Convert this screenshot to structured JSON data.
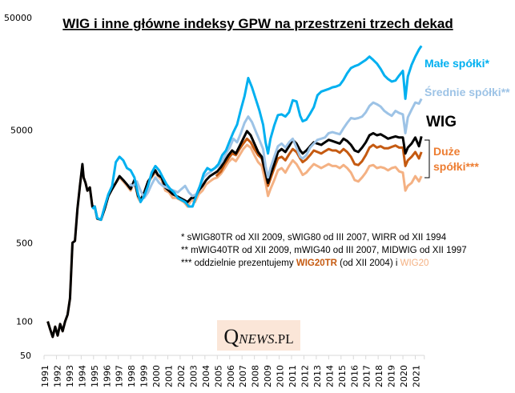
{
  "chart_data": {
    "type": "line",
    "title": "WIG i inne główne indeksy GPW na przestrzeni trzech dekad",
    "xlabel": "",
    "ylabel": "",
    "yscale": "log",
    "ylim": [
      50,
      50000
    ],
    "xlim": [
      1991,
      2021.6
    ],
    "yticks": [
      {
        "value": 50000,
        "label": "50000",
        "color": "#000000"
      },
      {
        "value": 5000,
        "label": "5000",
        "color": "#000000"
      },
      {
        "value": 500,
        "label": "500",
        "color": "#000000"
      },
      {
        "value": 100,
        "label": "100",
        "color": "#ff0000"
      },
      {
        "value": 50,
        "label": "50",
        "color": "#000000"
      }
    ],
    "xticks": [
      "1991",
      "1992",
      "1993",
      "1994",
      "1995",
      "1996",
      "1997",
      "1998",
      "1999",
      "2000",
      "2001",
      "2002",
      "2003",
      "2004",
      "2005",
      "2006",
      "2007",
      "2008",
      "2009",
      "2010",
      "2011",
      "2012",
      "2013",
      "2014",
      "2015",
      "2016",
      "2017",
      "2018",
      "2019",
      "2020",
      "2021"
    ],
    "grid": false,
    "legend": "right-inline",
    "series": [
      {
        "name": "WIG20",
        "label": "",
        "color": "#f4b183",
        "x": [
          1991.3,
          1991.5,
          1991.7,
          1991.9,
          1992.1,
          1992.3,
          1992.5,
          1992.7,
          1992.9,
          1993.1,
          1993.3,
          1993.5,
          1993.7,
          1993.9,
          1994.1,
          1994.2,
          1994.35,
          1994.5,
          1994.7,
          1994.9,
          1995.1,
          1995.3,
          1995.6,
          1995.9,
          1996.2,
          1996.5,
          1996.8,
          1997.1,
          1997.4,
          1997.7,
          1998.0,
          1998.3,
          1998.6,
          1998.8,
          1999.1,
          1999.4,
          1999.7,
          2000.0,
          2000.2,
          2000.5,
          2000.8,
          2001.1,
          2001.4,
          2001.7,
          2002.0,
          2002.3,
          2002.6,
          2002.9,
          2003.2,
          2003.5,
          2003.8,
          2004.1,
          2004.4,
          2004.7,
          2005.0,
          2005.3,
          2005.6,
          2005.9,
          2006.2,
          2006.5,
          2006.8,
          2007.1,
          2007.4,
          2007.7,
          2008.0,
          2008.3,
          2008.6,
          2008.9,
          2009.1,
          2009.3,
          2009.6,
          2009.9,
          2010.2,
          2010.5,
          2010.8,
          2011.1,
          2011.4,
          2011.7,
          2011.9,
          2012.2,
          2012.5,
          2012.8,
          2013.1,
          2013.4,
          2013.7,
          2014.0,
          2014.3,
          2014.6,
          2014.9,
          2015.2,
          2015.5,
          2015.8,
          2016.1,
          2016.4,
          2016.7,
          2017.0,
          2017.3,
          2017.6,
          2017.9,
          2018.2,
          2018.5,
          2018.8,
          2019.1,
          2019.4,
          2019.7,
          2020.0,
          2020.2,
          2020.4,
          2020.7,
          2021.0,
          2021.3,
          2021.5
        ],
        "y": [
          100,
          85,
          73,
          90,
          75,
          95,
          82,
          100,
          115,
          160,
          500,
          520,
          1000,
          1600,
          2400,
          1900,
          1700,
          1450,
          1550,
          1050,
          1050,
          820,
          800,
          1000,
          1300,
          1500,
          1700,
          1900,
          1750,
          1600,
          1450,
          1750,
          1250,
          1150,
          1350,
          1700,
          1900,
          2100,
          1950,
          1800,
          1450,
          1400,
          1250,
          1250,
          1200,
          1150,
          1050,
          1200,
          1150,
          1350,
          1450,
          1650,
          1750,
          1850,
          1900,
          2050,
          2300,
          2600,
          2800,
          2650,
          3000,
          3400,
          3700,
          3500,
          3000,
          2600,
          2400,
          1700,
          1300,
          1500,
          1800,
          2200,
          2300,
          2100,
          2400,
          2700,
          2500,
          2200,
          2000,
          2100,
          2300,
          2500,
          2400,
          2300,
          2400,
          2500,
          2400,
          2400,
          2300,
          2450,
          2300,
          2100,
          1800,
          1750,
          1900,
          2100,
          2400,
          2450,
          2300,
          2350,
          2300,
          2200,
          2300,
          2350,
          2150,
          2100,
          1450,
          1600,
          1700,
          1950,
          1750,
          1950
        ]
      },
      {
        "name": "WIG20TR",
        "label": "",
        "color": "#c55a11",
        "x": [
          2004.9,
          2005.3,
          2005.6,
          2005.9,
          2006.2,
          2006.5,
          2006.8,
          2007.1,
          2007.4,
          2007.7,
          2008.0,
          2008.3,
          2008.6,
          2008.9,
          2009.1,
          2009.3,
          2009.6,
          2009.9,
          2010.2,
          2010.5,
          2010.8,
          2011.1,
          2011.4,
          2011.7,
          2011.9,
          2012.2,
          2012.5,
          2012.8,
          2013.1,
          2013.4,
          2013.7,
          2014.0,
          2014.3,
          2014.6,
          2014.9,
          2015.2,
          2015.5,
          2015.8,
          2016.1,
          2016.4,
          2016.7,
          2017.0,
          2017.3,
          2017.6,
          2017.9,
          2018.2,
          2018.5,
          2018.8,
          2019.1,
          2019.4,
          2019.7,
          2020.0,
          2020.2,
          2020.4,
          2020.7,
          2021.0,
          2021.3,
          2021.5
        ],
        "y": [
          1950,
          2150,
          2500,
          2800,
          3100,
          3000,
          3400,
          3800,
          4200,
          3900,
          3400,
          3000,
          2800,
          2000,
          1600,
          1850,
          2300,
          2800,
          2900,
          2700,
          3050,
          3400,
          3200,
          2800,
          2600,
          2750,
          3000,
          3300,
          3200,
          3100,
          3250,
          3400,
          3300,
          3300,
          3150,
          3400,
          3200,
          2900,
          2500,
          2450,
          2650,
          3000,
          3500,
          3700,
          3500,
          3600,
          3450,
          3450,
          3550,
          3650,
          3500,
          3500,
          2400,
          2700,
          2900,
          3200,
          2800,
          3200
        ]
      },
      {
        "name": "WIG",
        "label": "WIG",
        "color": "#000000",
        "x": [
          1991.3,
          1991.5,
          1991.7,
          1991.9,
          1992.1,
          1992.3,
          1992.5,
          1992.7,
          1992.9,
          1993.1,
          1993.3,
          1993.5,
          1993.7,
          1993.9,
          1994.1,
          1994.2,
          1994.35,
          1994.5,
          1994.7,
          1994.9,
          1995.1,
          1995.3,
          1995.6,
          1995.9,
          1996.2,
          1996.5,
          1996.8,
          1997.1,
          1997.4,
          1997.7,
          1998.0,
          1998.3,
          1998.6,
          1998.8,
          1999.1,
          1999.4,
          1999.7,
          2000.0,
          2000.2,
          2000.5,
          2000.8,
          2001.1,
          2001.4,
          2001.7,
          2002.0,
          2002.3,
          2002.6,
          2002.9,
          2003.2,
          2003.5,
          2003.8,
          2004.1,
          2004.4,
          2004.7,
          2005.0,
          2005.3,
          2005.6,
          2005.9,
          2006.2,
          2006.5,
          2006.8,
          2007.1,
          2007.4,
          2007.7,
          2008.0,
          2008.3,
          2008.6,
          2008.9,
          2009.1,
          2009.3,
          2009.6,
          2009.9,
          2010.2,
          2010.5,
          2010.8,
          2011.1,
          2011.4,
          2011.7,
          2011.9,
          2012.2,
          2012.5,
          2012.8,
          2013.1,
          2013.4,
          2013.7,
          2014.0,
          2014.3,
          2014.6,
          2014.9,
          2015.2,
          2015.5,
          2015.8,
          2016.1,
          2016.4,
          2016.7,
          2017.0,
          2017.3,
          2017.6,
          2017.9,
          2018.2,
          2018.5,
          2018.8,
          2019.1,
          2019.4,
          2019.7,
          2020.0,
          2020.2,
          2020.4,
          2020.7,
          2021.0,
          2021.3,
          2021.5
        ],
        "y": [
          100,
          85,
          73,
          90,
          75,
          95,
          82,
          100,
          115,
          160,
          500,
          520,
          1000,
          1600,
          2500,
          1900,
          1700,
          1450,
          1550,
          1050,
          1050,
          820,
          800,
          1000,
          1300,
          1500,
          1700,
          1950,
          1800,
          1650,
          1500,
          1800,
          1300,
          1200,
          1400,
          1750,
          1950,
          2200,
          2000,
          1900,
          1550,
          1450,
          1350,
          1300,
          1250,
          1200,
          1150,
          1250,
          1250,
          1450,
          1600,
          1800,
          1950,
          2050,
          2150,
          2350,
          2650,
          3000,
          3300,
          3100,
          3600,
          4200,
          4900,
          4500,
          3800,
          3200,
          2900,
          2100,
          1700,
          2000,
          2500,
          3200,
          3400,
          3200,
          3600,
          4100,
          3800,
          3300,
          3100,
          3300,
          3600,
          3900,
          3800,
          3700,
          3900,
          4100,
          4000,
          3900,
          3800,
          4200,
          4000,
          3700,
          3300,
          3200,
          3500,
          3900,
          4500,
          4700,
          4500,
          4600,
          4400,
          4200,
          4300,
          4400,
          4300,
          4300,
          3100,
          3500,
          3800,
          4300,
          3600,
          4400
        ]
      },
      {
        "name": "Średnie spółki**",
        "label": "Średnie spółki**",
        "color": "#9dc3e6",
        "x": [
          1997.9,
          1998.2,
          1998.5,
          1998.8,
          1999.1,
          1999.4,
          1999.7,
          2000.0,
          2000.3,
          2000.6,
          2000.9,
          2001.2,
          2001.5,
          2001.8,
          2002.1,
          2002.4,
          2002.7,
          2003.0,
          2003.3,
          2003.6,
          2003.9,
          2004.2,
          2004.5,
          2004.8,
          2005.1,
          2005.4,
          2005.7,
          2006.0,
          2006.3,
          2006.6,
          2006.9,
          2007.2,
          2007.5,
          2007.8,
          2008.1,
          2008.4,
          2008.7,
          2008.9,
          2009.1,
          2009.3,
          2009.6,
          2009.9,
          2010.2,
          2010.5,
          2010.8,
          2011.1,
          2011.4,
          2011.7,
          2011.9,
          2012.2,
          2012.5,
          2012.8,
          2013.1,
          2013.4,
          2013.7,
          2014.0,
          2014.3,
          2014.6,
          2014.9,
          2015.2,
          2015.5,
          2015.8,
          2016.1,
          2016.4,
          2016.7,
          2017.0,
          2017.3,
          2017.6,
          2017.9,
          2018.2,
          2018.5,
          2018.8,
          2019.1,
          2019.4,
          2019.7,
          2020.0,
          2020.2,
          2020.4,
          2020.7,
          2021.0,
          2021.3,
          2021.5
        ],
        "y": [
          1650,
          1600,
          1750,
          1450,
          1250,
          1400,
          1650,
          1900,
          1700,
          1600,
          1550,
          1500,
          1450,
          1400,
          1500,
          1600,
          1400,
          1300,
          1350,
          1600,
          1900,
          2050,
          2150,
          2300,
          2400,
          2650,
          3100,
          3500,
          4200,
          3900,
          4700,
          5800,
          6600,
          5900,
          4900,
          4100,
          3400,
          2400,
          1900,
          2300,
          2900,
          3600,
          3800,
          3500,
          3900,
          4200,
          3500,
          2900,
          2800,
          3000,
          3500,
          3800,
          4100,
          4200,
          4300,
          4700,
          4800,
          4700,
          4600,
          5200,
          5800,
          6400,
          6300,
          6400,
          6600,
          7200,
          8200,
          8800,
          8500,
          8100,
          7400,
          7000,
          6700,
          7400,
          7100,
          6900,
          4700,
          6500,
          7600,
          8800,
          8600,
          9500
        ]
      },
      {
        "name": "Małe spółki*",
        "label": "Małe spółki*",
        "color": "#00b0f0",
        "x": [
          1994.9,
          1995.1,
          1995.3,
          1995.6,
          1995.9,
          1996.2,
          1996.5,
          1996.8,
          1997.1,
          1997.4,
          1997.7,
          1998.0,
          1998.3,
          1998.6,
          1998.8,
          1999.1,
          1999.4,
          1999.7,
          2000.0,
          2000.3,
          2000.6,
          2000.9,
          2001.2,
          2001.5,
          2001.8,
          2002.1,
          2002.4,
          2002.7,
          2003.0,
          2003.3,
          2003.6,
          2003.9,
          2004.2,
          2004.5,
          2004.8,
          2005.1,
          2005.4,
          2005.7,
          2006.0,
          2006.3,
          2006.6,
          2006.9,
          2007.2,
          2007.5,
          2007.8,
          2008.1,
          2008.4,
          2008.7,
          2008.9,
          2009.1,
          2009.3,
          2009.6,
          2009.9,
          2010.2,
          2010.5,
          2010.8,
          2011.1,
          2011.4,
          2011.7,
          2011.9,
          2012.2,
          2012.5,
          2012.8,
          2013.1,
          2013.4,
          2013.7,
          2014.0,
          2014.3,
          2014.6,
          2014.9,
          2015.2,
          2015.5,
          2015.8,
          2016.1,
          2016.4,
          2016.7,
          2017.0,
          2017.3,
          2017.6,
          2017.9,
          2018.2,
          2018.5,
          2018.8,
          2019.1,
          2019.4,
          2019.7,
          2020.0,
          2020.2,
          2020.4,
          2020.7,
          2021.0,
          2021.3,
          2021.5
        ],
        "y": [
          1000,
          1050,
          830,
          800,
          1050,
          1350,
          1600,
          2600,
          2900,
          2700,
          2300,
          2200,
          1900,
          1350,
          1150,
          1300,
          1600,
          2100,
          2400,
          2200,
          1900,
          1650,
          1500,
          1400,
          1250,
          1200,
          1150,
          1050,
          1050,
          1300,
          1600,
          2050,
          2300,
          2200,
          2300,
          2500,
          3000,
          3300,
          4000,
          4800,
          5600,
          7600,
          10000,
          14500,
          12000,
          9500,
          7500,
          5600,
          3900,
          3100,
          4200,
          5500,
          6800,
          6900,
          6600,
          7200,
          9200,
          9000,
          6700,
          6000,
          6200,
          7000,
          8000,
          10200,
          11000,
          11300,
          11600,
          12000,
          12200,
          12600,
          14000,
          16000,
          17800,
          18500,
          19000,
          20000,
          21000,
          22500,
          21000,
          19500,
          17500,
          15300,
          14200,
          13500,
          13800,
          15300,
          16800,
          9500,
          15000,
          19000,
          22500,
          26000,
          28000
        ]
      }
    ],
    "labels": [
      {
        "text": "Małe spółki*",
        "color": "#00b0f0",
        "series": "Małe spółki*"
      },
      {
        "text": "Średnie spółki**",
        "color": "#9dc3e6",
        "series": "Średnie spółki**"
      },
      {
        "text": "WIG",
        "color": "#000000",
        "series": "WIG"
      },
      {
        "text": "Duże",
        "color": "#ed7d31",
        "series": "WIG20TR / WIG20"
      },
      {
        "text": "spółki***",
        "color": "#ed7d31",
        "series": "WIG20TR / WIG20"
      }
    ],
    "annotations": {
      "note1": "* sWIG80TR od XII 2009, sWIG80 od III 2007, WIRR od XII 1994",
      "note2": "** mWIG40TR od XII 2009, mWIG40 od III 2007, MIDWIG od XII 1997",
      "note3_prefix": "*** oddzielnie prezentujemy ",
      "note3_wig20tr": "WIG20TR",
      "note3_mid": " (od XII 2004) i ",
      "note3_wig20": "WIG20",
      "note3_wig20tr_color": "#c55a11",
      "note3_wig20_color": "#f4b183"
    }
  },
  "logo": {
    "q": "Q",
    "news": "NEWS",
    "pl": ".PL"
  }
}
